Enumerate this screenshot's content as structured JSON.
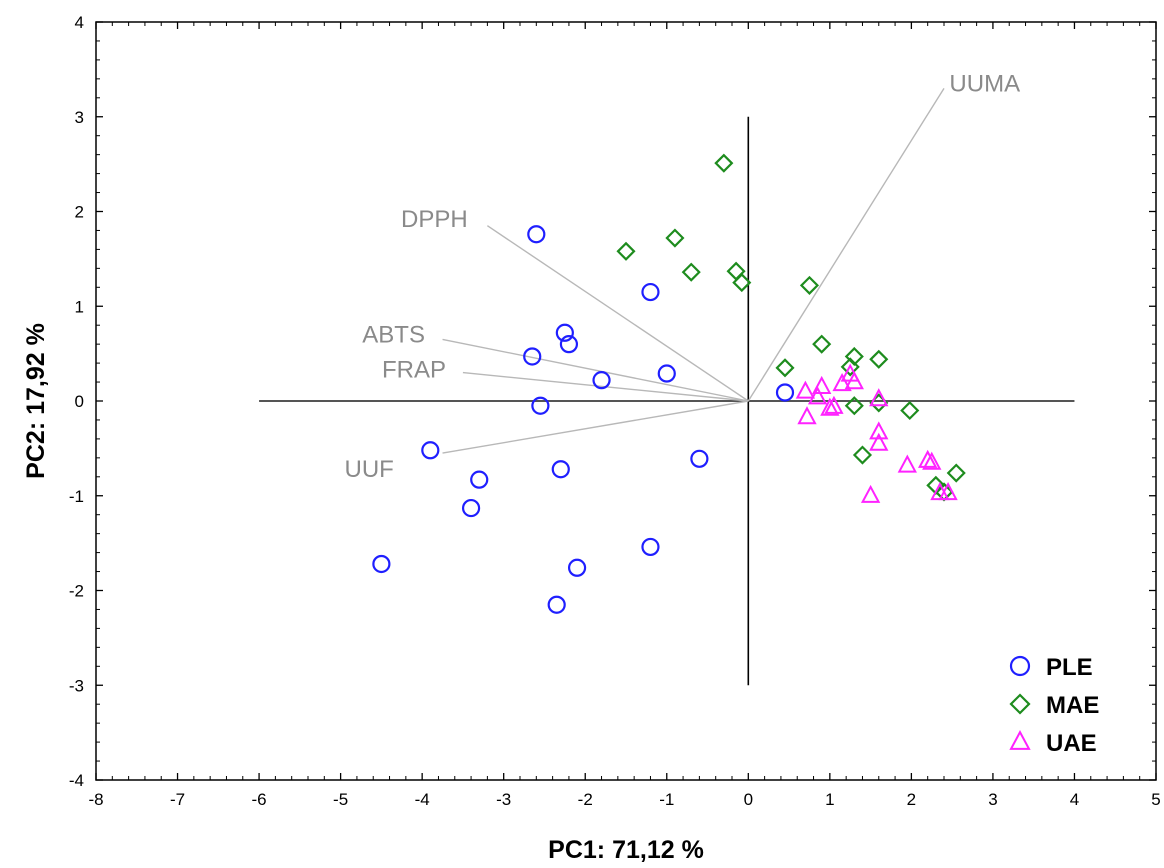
{
  "chart_data": {
    "type": "scatter",
    "xlabel": "PC1: 71,12 %",
    "ylabel": "PC2: 17,92 %",
    "xlim": [
      -8,
      5
    ],
    "ylim": [
      -4,
      4
    ],
    "x_ticks": [
      "-8",
      "-7",
      "-6",
      "-5",
      "-4",
      "-3",
      "-2",
      "-1",
      "0",
      "1",
      "2",
      "3",
      "4",
      "5"
    ],
    "y_ticks": [
      "4",
      "3",
      "2",
      "1",
      "0",
      "-1",
      "-2",
      "-3",
      "-4"
    ],
    "grid": false,
    "legend_position": "bottom-right",
    "reference_lines": {
      "horizontal": {
        "y": 0,
        "x_from": -6,
        "x_to": 4
      },
      "vertical": {
        "x": 0,
        "y_from": -3,
        "y_to": 3
      }
    },
    "series": [
      {
        "name": "PLE",
        "marker": "circle",
        "color": "#1f1fff",
        "points": [
          [
            -2.6,
            1.76
          ],
          [
            -1.2,
            1.15
          ],
          [
            -2.25,
            0.72
          ],
          [
            -2.2,
            0.6
          ],
          [
            -2.65,
            0.47
          ],
          [
            -1.8,
            0.22
          ],
          [
            -1.0,
            0.29
          ],
          [
            -2.55,
            -0.05
          ],
          [
            0.45,
            0.09
          ],
          [
            -3.9,
            -0.52
          ],
          [
            -2.3,
            -0.72
          ],
          [
            -0.6,
            -0.61
          ],
          [
            -3.3,
            -0.83
          ],
          [
            -3.4,
            -1.13
          ],
          [
            -1.2,
            -1.54
          ],
          [
            -2.1,
            -1.76
          ],
          [
            -4.5,
            -1.72
          ],
          [
            -2.35,
            -2.15
          ]
        ]
      },
      {
        "name": "MAE",
        "marker": "diamond",
        "color": "#1e8c1e",
        "points": [
          [
            -0.3,
            2.51
          ],
          [
            -1.5,
            1.58
          ],
          [
            -0.9,
            1.72
          ],
          [
            -0.7,
            1.36
          ],
          [
            -0.15,
            1.37
          ],
          [
            -0.08,
            1.25
          ],
          [
            0.75,
            1.22
          ],
          [
            0.45,
            0.35
          ],
          [
            0.9,
            0.6
          ],
          [
            1.3,
            0.47
          ],
          [
            1.25,
            0.36
          ],
          [
            1.6,
            0.44
          ],
          [
            1.3,
            -0.05
          ],
          [
            1.6,
            -0.02
          ],
          [
            1.98,
            -0.1
          ],
          [
            1.4,
            -0.57
          ],
          [
            2.55,
            -0.76
          ],
          [
            2.3,
            -0.89
          ],
          [
            2.4,
            -0.96
          ]
        ]
      },
      {
        "name": "UAE",
        "marker": "triangle",
        "color": "#ff22ff",
        "points": [
          [
            0.7,
            0.1
          ],
          [
            0.9,
            0.15
          ],
          [
            1.15,
            0.18
          ],
          [
            1.3,
            0.2
          ],
          [
            1.25,
            0.28
          ],
          [
            0.85,
            0.04
          ],
          [
            1.0,
            -0.08
          ],
          [
            1.05,
            -0.06
          ],
          [
            0.72,
            -0.17
          ],
          [
            1.6,
            0.02
          ],
          [
            1.6,
            -0.33
          ],
          [
            1.6,
            -0.45
          ],
          [
            1.95,
            -0.68
          ],
          [
            2.2,
            -0.63
          ],
          [
            2.25,
            -0.65
          ],
          [
            1.5,
            -1.0
          ],
          [
            2.35,
            -0.97
          ],
          [
            2.45,
            -0.97
          ]
        ]
      }
    ],
    "vectors": [
      {
        "label": "UUMA",
        "tip": [
          2.4,
          3.3
        ],
        "label_at": [
          2.9,
          3.35
        ]
      },
      {
        "label": "DPPH",
        "tip": [
          -3.2,
          1.85
        ],
        "label_at": [
          -3.85,
          1.92
        ]
      },
      {
        "label": "ABTS",
        "tip": [
          -3.75,
          0.65
        ],
        "label_at": [
          -4.35,
          0.7
        ]
      },
      {
        "label": "FRAP",
        "tip": [
          -3.5,
          0.3
        ],
        "label_at": [
          -4.1,
          0.33
        ]
      },
      {
        "label": "UUF",
        "tip": [
          -3.75,
          -0.55
        ],
        "label_at": [
          -4.65,
          -0.72
        ]
      }
    ]
  }
}
